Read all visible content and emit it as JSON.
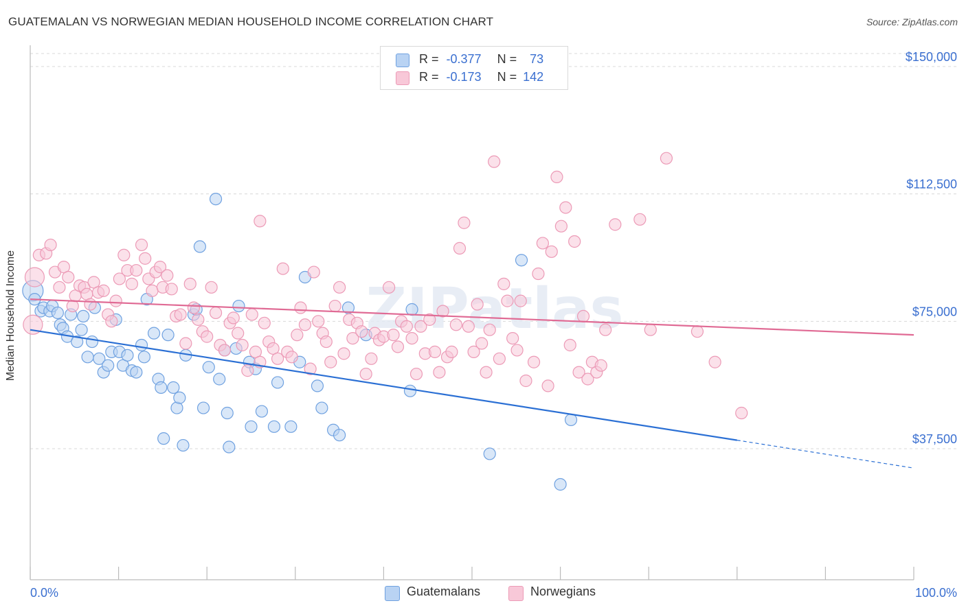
{
  "header": {
    "title": "GUATEMALAN VS NORWEGIAN MEDIAN HOUSEHOLD INCOME CORRELATION CHART",
    "source": "Source: ZipAtlas.com"
  },
  "watermark": "ZIPatlas",
  "legend_stats": [
    {
      "r_label": "R =",
      "r_value": "-0.377",
      "n_label": "N =",
      "n_value": "73"
    },
    {
      "r_label": "R =",
      "r_value": "-0.173",
      "n_label": "N =",
      "n_value": "142"
    }
  ],
  "chart_data": {
    "type": "scatter",
    "ylabel": "Median Household Income",
    "xlim": [
      0,
      100
    ],
    "ylim": [
      0,
      160000
    ],
    "x_tick_labels": [
      "0.0%",
      "100.0%"
    ],
    "y_ticks": [
      {
        "value": 37500,
        "label": "$37,500"
      },
      {
        "value": 75000,
        "label": "$75,000"
      },
      {
        "value": 112500,
        "label": "$112,500"
      },
      {
        "value": 150000,
        "label": "$150,000"
      }
    ],
    "grid": "horizontal dashed",
    "legend_position": "bottom-center",
    "series": [
      {
        "name": "Guatemalans",
        "color": "#6fa1e0",
        "fill": "#b9d3f3",
        "trend_color": "#2a6fd4",
        "trend": {
          "x0": 0,
          "y0": 72500,
          "x1": 80,
          "y1": 40000,
          "dash_to_x": 100,
          "dash_to_y": 31800
        },
        "points": [
          [
            0.3,
            84000
          ],
          [
            0.5,
            81500
          ],
          [
            1.2,
            78000
          ],
          [
            1.5,
            79000
          ],
          [
            2.2,
            78000
          ],
          [
            2.5,
            79500
          ],
          [
            3.1,
            77500
          ],
          [
            3.4,
            74000
          ],
          [
            3.7,
            73000
          ],
          [
            4.2,
            70500
          ],
          [
            4.6,
            77000
          ],
          [
            5.3,
            69000
          ],
          [
            5.8,
            72500
          ],
          [
            6.0,
            76500
          ],
          [
            6.5,
            64500
          ],
          [
            7.0,
            69000
          ],
          [
            7.3,
            79000
          ],
          [
            7.8,
            64000
          ],
          [
            8.3,
            60000
          ],
          [
            8.8,
            62000
          ],
          [
            9.2,
            66000
          ],
          [
            9.7,
            75500
          ],
          [
            10.1,
            66000
          ],
          [
            10.5,
            62000
          ],
          [
            11.0,
            65000
          ],
          [
            11.5,
            60500
          ],
          [
            12.0,
            60000
          ],
          [
            12.6,
            68000
          ],
          [
            12.9,
            64500
          ],
          [
            13.2,
            81500
          ],
          [
            14.0,
            71500
          ],
          [
            14.5,
            58000
          ],
          [
            14.8,
            55500
          ],
          [
            15.1,
            40500
          ],
          [
            15.6,
            71000
          ],
          [
            16.2,
            55500
          ],
          [
            16.6,
            49500
          ],
          [
            16.9,
            52500
          ],
          [
            17.3,
            38500
          ],
          [
            17.6,
            65000
          ],
          [
            18.5,
            77000
          ],
          [
            18.8,
            78500
          ],
          [
            19.2,
            97000
          ],
          [
            19.6,
            49500
          ],
          [
            20.2,
            61500
          ],
          [
            21.0,
            111000
          ],
          [
            21.4,
            58000
          ],
          [
            22.0,
            66500
          ],
          [
            22.3,
            48000
          ],
          [
            22.5,
            38000
          ],
          [
            23.3,
            67000
          ],
          [
            23.6,
            79500
          ],
          [
            24.8,
            63000
          ],
          [
            25.0,
            44000
          ],
          [
            25.5,
            61000
          ],
          [
            26.2,
            48500
          ],
          [
            27.6,
            44000
          ],
          [
            28.0,
            57000
          ],
          [
            29.5,
            44000
          ],
          [
            30.5,
            63000
          ],
          [
            31.1,
            88000
          ],
          [
            32.5,
            56000
          ],
          [
            33.0,
            49500
          ],
          [
            34.3,
            43000
          ],
          [
            35.0,
            41500
          ],
          [
            36.0,
            79000
          ],
          [
            38.0,
            71000
          ],
          [
            43.0,
            54500
          ],
          [
            43.2,
            78500
          ],
          [
            52.0,
            36000
          ],
          [
            55.6,
            93000
          ],
          [
            60.0,
            27000
          ],
          [
            61.2,
            46000
          ]
        ]
      },
      {
        "name": "Norwegians",
        "color": "#ec9ab6",
        "fill": "#f8c8d8",
        "trend_color": "#e06a94",
        "trend": {
          "x0": 0,
          "y0": 81500,
          "x1": 100,
          "y1": 71000
        },
        "points": [
          [
            0.5,
            88000
          ],
          [
            0.3,
            74000
          ],
          [
            1.0,
            94500
          ],
          [
            1.8,
            95000
          ],
          [
            2.3,
            97500
          ],
          [
            2.8,
            89500
          ],
          [
            3.3,
            85000
          ],
          [
            3.8,
            91000
          ],
          [
            4.3,
            88000
          ],
          [
            4.8,
            79500
          ],
          [
            5.1,
            82500
          ],
          [
            5.6,
            85500
          ],
          [
            6.1,
            85000
          ],
          [
            6.4,
            83000
          ],
          [
            6.8,
            80000
          ],
          [
            7.2,
            86500
          ],
          [
            7.7,
            83500
          ],
          [
            8.3,
            84000
          ],
          [
            8.8,
            77000
          ],
          [
            9.2,
            75000
          ],
          [
            9.7,
            81000
          ],
          [
            10.1,
            87500
          ],
          [
            10.6,
            94500
          ],
          [
            11.0,
            90000
          ],
          [
            11.5,
            86000
          ],
          [
            12.0,
            90000
          ],
          [
            12.6,
            97500
          ],
          [
            13.0,
            93500
          ],
          [
            13.4,
            87500
          ],
          [
            13.8,
            84000
          ],
          [
            14.2,
            89500
          ],
          [
            14.7,
            91000
          ],
          [
            15.0,
            85000
          ],
          [
            15.5,
            88500
          ],
          [
            16.0,
            84500
          ],
          [
            16.5,
            76500
          ],
          [
            17.0,
            77000
          ],
          [
            17.6,
            68500
          ],
          [
            18.1,
            86000
          ],
          [
            18.5,
            79000
          ],
          [
            19.0,
            75500
          ],
          [
            19.5,
            72000
          ],
          [
            20.0,
            70500
          ],
          [
            20.5,
            85000
          ],
          [
            21.0,
            77500
          ],
          [
            21.5,
            68000
          ],
          [
            22.0,
            66500
          ],
          [
            22.6,
            74500
          ],
          [
            23.0,
            76000
          ],
          [
            23.5,
            71500
          ],
          [
            24.0,
            68000
          ],
          [
            24.6,
            60500
          ],
          [
            25.1,
            77000
          ],
          [
            25.5,
            66000
          ],
          [
            26.0,
            63000
          ],
          [
            26.5,
            74500
          ],
          [
            27.0,
            69000
          ],
          [
            27.5,
            67000
          ],
          [
            28.0,
            64000
          ],
          [
            28.6,
            90500
          ],
          [
            29.1,
            66000
          ],
          [
            29.6,
            64500
          ],
          [
            30.2,
            71000
          ],
          [
            30.6,
            79000
          ],
          [
            31.1,
            74000
          ],
          [
            31.7,
            61000
          ],
          [
            32.1,
            89500
          ],
          [
            32.6,
            75000
          ],
          [
            33.1,
            71500
          ],
          [
            33.5,
            69000
          ],
          [
            34.0,
            63000
          ],
          [
            34.5,
            79500
          ],
          [
            35.0,
            85000
          ],
          [
            35.5,
            65500
          ],
          [
            36.1,
            75500
          ],
          [
            36.5,
            70000
          ],
          [
            37.0,
            74500
          ],
          [
            37.5,
            72000
          ],
          [
            38.0,
            59500
          ],
          [
            38.6,
            64000
          ],
          [
            39.0,
            71500
          ],
          [
            39.5,
            69500
          ],
          [
            40.0,
            70500
          ],
          [
            40.6,
            85000
          ],
          [
            41.1,
            71000
          ],
          [
            41.6,
            67500
          ],
          [
            42.0,
            75000
          ],
          [
            42.6,
            73500
          ],
          [
            43.2,
            70000
          ],
          [
            43.7,
            59500
          ],
          [
            44.2,
            73500
          ],
          [
            44.7,
            65500
          ],
          [
            45.2,
            75500
          ],
          [
            45.8,
            66000
          ],
          [
            46.3,
            60000
          ],
          [
            46.7,
            78000
          ],
          [
            47.2,
            64500
          ],
          [
            47.7,
            66000
          ],
          [
            48.2,
            74000
          ],
          [
            48.6,
            96500
          ],
          [
            49.1,
            104000
          ],
          [
            49.6,
            73500
          ],
          [
            50.2,
            66000
          ],
          [
            50.6,
            80000
          ],
          [
            51.1,
            68500
          ],
          [
            51.6,
            60000
          ],
          [
            52.0,
            72500
          ],
          [
            52.5,
            122000
          ],
          [
            53.1,
            64000
          ],
          [
            53.6,
            86000
          ],
          [
            54.0,
            81000
          ],
          [
            54.6,
            70000
          ],
          [
            55.1,
            66500
          ],
          [
            55.5,
            81000
          ],
          [
            56.1,
            57500
          ],
          [
            57.0,
            63000
          ],
          [
            57.5,
            89000
          ],
          [
            58.0,
            98000
          ],
          [
            58.6,
            56000
          ],
          [
            59.0,
            95500
          ],
          [
            59.6,
            117500
          ],
          [
            60.1,
            103000
          ],
          [
            60.6,
            108500
          ],
          [
            61.1,
            68000
          ],
          [
            61.6,
            98500
          ],
          [
            62.1,
            60000
          ],
          [
            62.6,
            76500
          ],
          [
            63.1,
            58000
          ],
          [
            63.6,
            63000
          ],
          [
            64.1,
            60000
          ],
          [
            64.6,
            62000
          ],
          [
            65.1,
            72500
          ],
          [
            66.2,
            103500
          ],
          [
            69.0,
            105000
          ],
          [
            70.2,
            72500
          ],
          [
            72.0,
            123000
          ],
          [
            75.5,
            72000
          ],
          [
            77.5,
            63000
          ],
          [
            80.5,
            48000
          ],
          [
            26.0,
            104500
          ]
        ]
      }
    ]
  }
}
